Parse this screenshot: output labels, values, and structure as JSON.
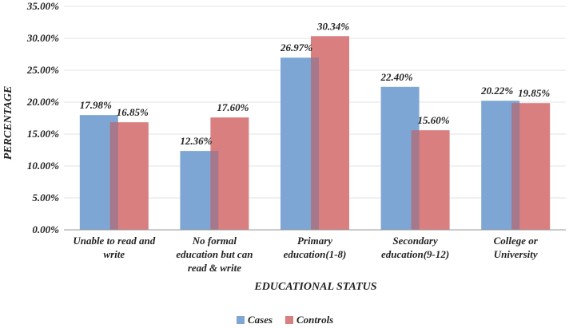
{
  "chart_data": {
    "type": "bar",
    "title": "",
    "xlabel": "EDUCATIONAL STATUS",
    "ylabel": "PERCENTAGE",
    "ylim": [
      0,
      35
    ],
    "yticks": [
      "0.00%",
      "5.00%",
      "10.00%",
      "15.00%",
      "20.00%",
      "25.00%",
      "30.00%",
      "35.00%"
    ],
    "categories": [
      [
        "Unable to read and",
        "write"
      ],
      [
        "No formal",
        "education but can",
        "read & write"
      ],
      [
        "Primary",
        "education(1-8)"
      ],
      [
        "Secondary",
        "education(9-12)"
      ],
      [
        "College or",
        "University"
      ]
    ],
    "series": [
      {
        "name": "Cases",
        "color": "#7EA6D4",
        "values": [
          17.98,
          12.36,
          26.97,
          22.4,
          20.22
        ],
        "labels": [
          "17.98%",
          "12.36%",
          "26.97%",
          "22.40%",
          "20.22%"
        ]
      },
      {
        "name": "Controls",
        "color": "#D97F80",
        "values": [
          16.85,
          17.6,
          30.34,
          15.6,
          19.85
        ],
        "labels": [
          "16.85%",
          "17.60%",
          "30.34%",
          "15.60%",
          "19.85%"
        ]
      }
    ],
    "overlap_color": "#A5788B",
    "legend_position": "bottom"
  }
}
